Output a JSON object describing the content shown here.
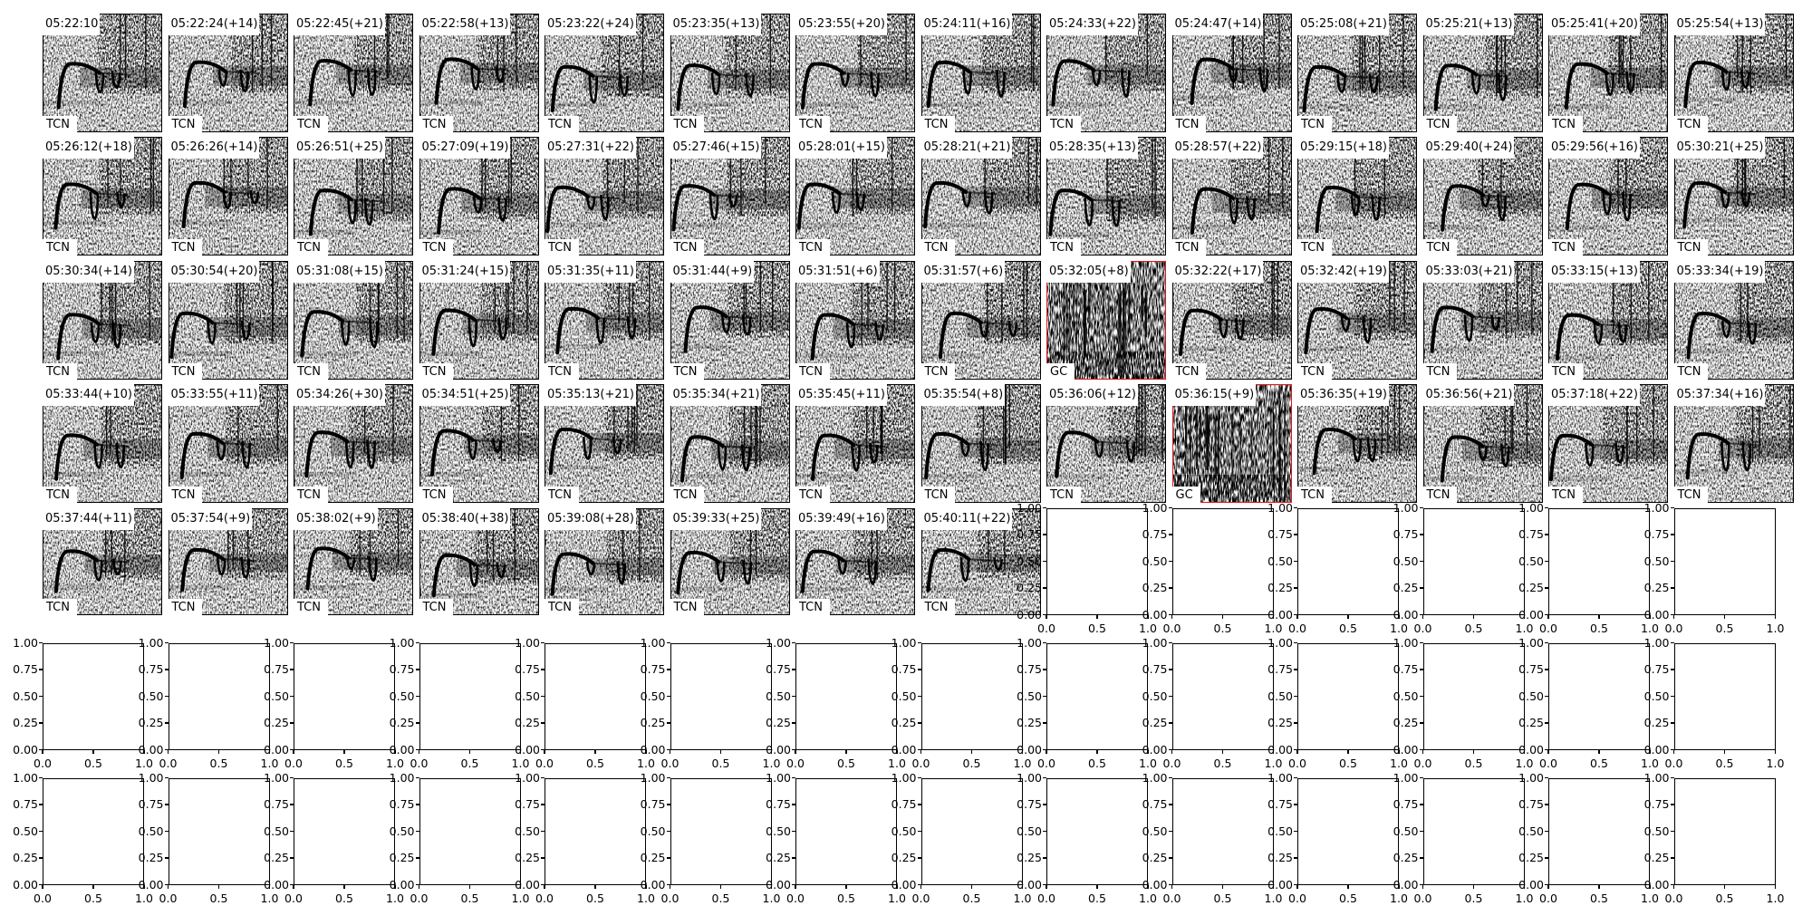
{
  "chart_data": {
    "type": "spectrogram-grid",
    "grid": {
      "rows": 7,
      "columns": 14
    },
    "highlight_color": "#e8141a",
    "panels": [
      {
        "time": "05:22:10",
        "species": "TCN"
      },
      {
        "time": "05:22:24(+14)",
        "species": "TCN"
      },
      {
        "time": "05:22:45(+21)",
        "species": "TCN"
      },
      {
        "time": "05:22:58(+13)",
        "species": "TCN"
      },
      {
        "time": "05:23:22(+24)",
        "species": "TCN"
      },
      {
        "time": "05:23:35(+13)",
        "species": "TCN"
      },
      {
        "time": "05:23:55(+20)",
        "species": "TCN"
      },
      {
        "time": "05:24:11(+16)",
        "species": "TCN"
      },
      {
        "time": "05:24:33(+22)",
        "species": "TCN"
      },
      {
        "time": "05:24:47(+14)",
        "species": "TCN"
      },
      {
        "time": "05:25:08(+21)",
        "species": "TCN"
      },
      {
        "time": "05:25:21(+13)",
        "species": "TCN"
      },
      {
        "time": "05:25:41(+20)",
        "species": "TCN"
      },
      {
        "time": "05:25:54(+13)",
        "species": "TCN"
      },
      {
        "time": "05:26:12(+18)",
        "species": "TCN"
      },
      {
        "time": "05:26:26(+14)",
        "species": "TCN"
      },
      {
        "time": "05:26:51(+25)",
        "species": "TCN"
      },
      {
        "time": "05:27:09(+19)",
        "species": "TCN"
      },
      {
        "time": "05:27:31(+22)",
        "species": "TCN"
      },
      {
        "time": "05:27:46(+15)",
        "species": "TCN"
      },
      {
        "time": "05:28:01(+15)",
        "species": "TCN"
      },
      {
        "time": "05:28:21(+21)",
        "species": "TCN"
      },
      {
        "time": "05:28:35(+13)",
        "species": "TCN"
      },
      {
        "time": "05:28:57(+22)",
        "species": "TCN"
      },
      {
        "time": "05:29:15(+18)",
        "species": "TCN"
      },
      {
        "time": "05:29:40(+24)",
        "species": "TCN"
      },
      {
        "time": "05:29:56(+16)",
        "species": "TCN"
      },
      {
        "time": "05:30:21(+25)",
        "species": "TCN"
      },
      {
        "time": "05:30:34(+14)",
        "species": "TCN"
      },
      {
        "time": "05:30:54(+20)",
        "species": "TCN"
      },
      {
        "time": "05:31:08(+15)",
        "species": "TCN"
      },
      {
        "time": "05:31:24(+15)",
        "species": "TCN"
      },
      {
        "time": "05:31:35(+11)",
        "species": "TCN"
      },
      {
        "time": "05:31:44(+9)",
        "species": "TCN"
      },
      {
        "time": "05:31:51(+6)",
        "species": "TCN"
      },
      {
        "time": "05:31:57(+6)",
        "species": "TCN"
      },
      {
        "time": "05:32:05(+8)",
        "species": "GC",
        "highlighted": true
      },
      {
        "time": "05:32:22(+17)",
        "species": "TCN"
      },
      {
        "time": "05:32:42(+19)",
        "species": "TCN"
      },
      {
        "time": "05:33:03(+21)",
        "species": "TCN"
      },
      {
        "time": "05:33:15(+13)",
        "species": "TCN"
      },
      {
        "time": "05:33:34(+19)",
        "species": "TCN"
      },
      {
        "time": "05:33:44(+10)",
        "species": "TCN"
      },
      {
        "time": "05:33:55(+11)",
        "species": "TCN"
      },
      {
        "time": "05:34:26(+30)",
        "species": "TCN"
      },
      {
        "time": "05:34:51(+25)",
        "species": "TCN"
      },
      {
        "time": "05:35:13(+21)",
        "species": "TCN"
      },
      {
        "time": "05:35:34(+21)",
        "species": "TCN"
      },
      {
        "time": "05:35:45(+11)",
        "species": "TCN"
      },
      {
        "time": "05:35:54(+8)",
        "species": "TCN"
      },
      {
        "time": "05:36:06(+12)",
        "species": "TCN"
      },
      {
        "time": "05:36:15(+9)",
        "species": "GC",
        "highlighted": true
      },
      {
        "time": "05:36:35(+19)",
        "species": "TCN"
      },
      {
        "time": "05:36:56(+21)",
        "species": "TCN"
      },
      {
        "time": "05:37:18(+22)",
        "species": "TCN"
      },
      {
        "time": "05:37:34(+16)",
        "species": "TCN"
      },
      {
        "time": "05:37:44(+11)",
        "species": "TCN"
      },
      {
        "time": "05:37:54(+9)",
        "species": "TCN"
      },
      {
        "time": "05:38:02(+9)",
        "species": "TCN"
      },
      {
        "time": "05:38:40(+38)",
        "species": "TCN"
      },
      {
        "time": "05:39:08(+28)",
        "species": "TCN"
      },
      {
        "time": "05:39:33(+25)",
        "species": "TCN"
      },
      {
        "time": "05:39:49(+16)",
        "species": "TCN"
      },
      {
        "time": "05:40:11(+22)",
        "species": "TCN"
      }
    ],
    "empty_axes": {
      "count": 34,
      "xlim": [
        0,
        1
      ],
      "ylim": [
        0,
        1
      ],
      "xticks": [
        "0.0",
        "0.5",
        "1.0"
      ],
      "yticks": [
        "0.00",
        "0.25",
        "0.50",
        "0.75",
        "1.00"
      ]
    }
  }
}
